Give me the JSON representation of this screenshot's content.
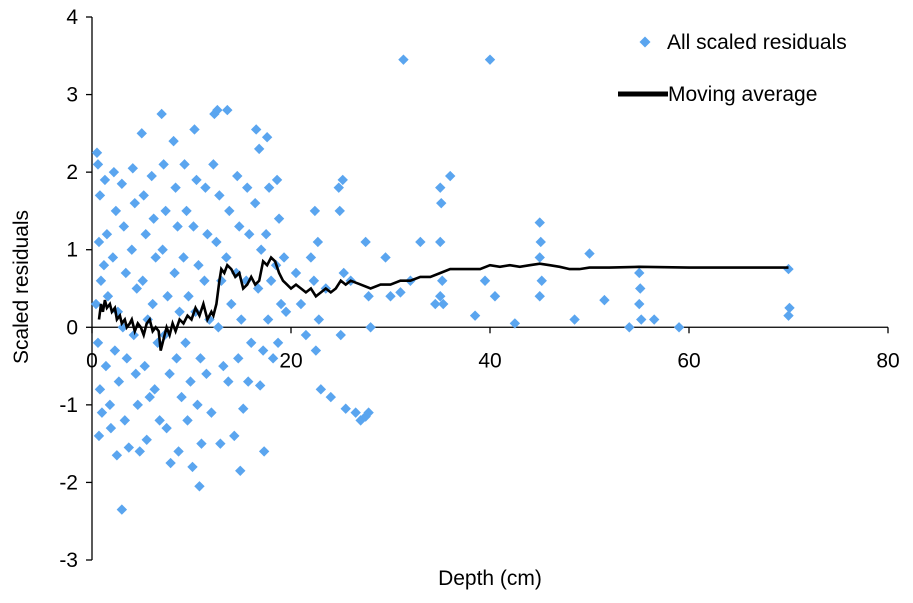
{
  "chart_data": {
    "type": "scatter",
    "xlabel": "Depth (cm)",
    "ylabel": "Scaled residuals",
    "xlim": [
      0,
      80
    ],
    "ylim": [
      -3,
      4
    ],
    "xticks": [
      "0",
      "20",
      "40",
      "60",
      "80"
    ],
    "yticks": [
      "-3",
      "-2",
      "-1",
      "0",
      "1",
      "2",
      "3",
      "4"
    ],
    "grid": false,
    "legend_position": "top-right",
    "colors": {
      "points": "#5aa5ef",
      "line": "#000000"
    },
    "series": [
      {
        "name": "All scaled residuals",
        "kind": "scatter",
        "marker": "diamond",
        "points": [
          [
            0.5,
            2.25
          ],
          [
            0.6,
            2.1
          ],
          [
            0.8,
            1.7
          ],
          [
            0.7,
            1.1
          ],
          [
            0.9,
            0.6
          ],
          [
            0.6,
            -0.2
          ],
          [
            0.8,
            -0.8
          ],
          [
            1.0,
            -1.1
          ],
          [
            0.7,
            -1.4
          ],
          [
            0.4,
            0.3
          ],
          [
            1.3,
            1.9
          ],
          [
            1.5,
            1.2
          ],
          [
            1.2,
            0.8
          ],
          [
            1.6,
            0.4
          ],
          [
            1.4,
            -0.5
          ],
          [
            1.8,
            -1.0
          ],
          [
            1.9,
            -1.3
          ],
          [
            2.2,
            2.0
          ],
          [
            2.4,
            1.5
          ],
          [
            2.1,
            0.9
          ],
          [
            2.6,
            0.2
          ],
          [
            2.3,
            -0.3
          ],
          [
            2.7,
            -0.7
          ],
          [
            2.5,
            -1.65
          ],
          [
            3.0,
            1.85
          ],
          [
            3.2,
            1.3
          ],
          [
            3.4,
            0.7
          ],
          [
            3.1,
            0.0
          ],
          [
            3.5,
            -0.4
          ],
          [
            3.3,
            -1.2
          ],
          [
            3.7,
            -1.55
          ],
          [
            3.0,
            -2.35
          ],
          [
            4.1,
            2.05
          ],
          [
            4.3,
            1.6
          ],
          [
            4.0,
            1.0
          ],
          [
            4.5,
            0.5
          ],
          [
            4.2,
            -0.1
          ],
          [
            4.4,
            -0.6
          ],
          [
            4.6,
            -1.0
          ],
          [
            4.8,
            -1.6
          ],
          [
            5.0,
            2.5
          ],
          [
            5.2,
            1.7
          ],
          [
            5.4,
            1.2
          ],
          [
            5.1,
            0.6
          ],
          [
            5.6,
            0.1
          ],
          [
            5.3,
            -0.5
          ],
          [
            5.8,
            -0.9
          ],
          [
            5.5,
            -1.45
          ],
          [
            6.0,
            1.95
          ],
          [
            6.2,
            1.4
          ],
          [
            6.4,
            0.9
          ],
          [
            6.1,
            0.3
          ],
          [
            6.6,
            -0.2
          ],
          [
            6.3,
            -0.8
          ],
          [
            6.8,
            -1.2
          ],
          [
            7.0,
            2.75
          ],
          [
            7.2,
            2.1
          ],
          [
            7.4,
            1.5
          ],
          [
            7.1,
            1.0
          ],
          [
            7.6,
            0.4
          ],
          [
            7.3,
            -0.1
          ],
          [
            7.8,
            -0.6
          ],
          [
            7.5,
            -1.3
          ],
          [
            7.9,
            -1.75
          ],
          [
            8.2,
            2.4
          ],
          [
            8.4,
            1.8
          ],
          [
            8.6,
            1.3
          ],
          [
            8.3,
            0.7
          ],
          [
            8.8,
            0.2
          ],
          [
            8.5,
            -0.4
          ],
          [
            9.0,
            -0.9
          ],
          [
            8.7,
            -1.6
          ],
          [
            9.3,
            2.1
          ],
          [
            9.5,
            1.5
          ],
          [
            9.2,
            0.9
          ],
          [
            9.7,
            0.4
          ],
          [
            9.4,
            -0.2
          ],
          [
            9.9,
            -0.7
          ],
          [
            9.6,
            -1.2
          ],
          [
            10.1,
            -1.8
          ],
          [
            10.3,
            2.55
          ],
          [
            10.5,
            1.9
          ],
          [
            10.2,
            1.3
          ],
          [
            10.7,
            0.8
          ],
          [
            10.4,
            0.2
          ],
          [
            10.9,
            -0.4
          ],
          [
            10.6,
            -1.0
          ],
          [
            11.0,
            -1.5
          ],
          [
            10.8,
            -2.05
          ],
          [
            11.4,
            1.8
          ],
          [
            11.6,
            1.2
          ],
          [
            11.3,
            0.6
          ],
          [
            11.8,
            0.1
          ],
          [
            11.5,
            -0.6
          ],
          [
            12.0,
            -1.1
          ],
          [
            12.3,
            2.75
          ],
          [
            12.6,
            2.8
          ],
          [
            12.2,
            2.1
          ],
          [
            12.8,
            1.7
          ],
          [
            12.5,
            1.1
          ],
          [
            13.0,
            0.6
          ],
          [
            12.7,
            0.0
          ],
          [
            13.2,
            -0.5
          ],
          [
            12.9,
            -1.5
          ],
          [
            13.6,
            2.8
          ],
          [
            13.8,
            1.5
          ],
          [
            13.5,
            0.9
          ],
          [
            14.0,
            0.3
          ],
          [
            13.7,
            -0.7
          ],
          [
            14.3,
            -1.4
          ],
          [
            14.6,
            1.95
          ],
          [
            14.8,
            1.3
          ],
          [
            14.5,
            0.7
          ],
          [
            15.0,
            0.1
          ],
          [
            14.7,
            -0.4
          ],
          [
            15.2,
            -1.05
          ],
          [
            14.9,
            -1.85
          ],
          [
            15.6,
            1.8
          ],
          [
            15.8,
            1.2
          ],
          [
            15.5,
            0.6
          ],
          [
            16.0,
            -0.2
          ],
          [
            15.7,
            -0.7
          ],
          [
            16.5,
            2.55
          ],
          [
            16.8,
            2.3
          ],
          [
            16.4,
            1.6
          ],
          [
            17.0,
            1.0
          ],
          [
            16.7,
            0.5
          ],
          [
            17.2,
            -0.3
          ],
          [
            16.9,
            -0.75
          ],
          [
            17.3,
            -1.6
          ],
          [
            17.6,
            2.45
          ],
          [
            17.8,
            1.8
          ],
          [
            17.5,
            1.2
          ],
          [
            18.0,
            0.6
          ],
          [
            17.7,
            0.1
          ],
          [
            18.2,
            -0.4
          ],
          [
            18.6,
            1.9
          ],
          [
            18.8,
            1.4
          ],
          [
            18.5,
            0.8
          ],
          [
            19.0,
            0.3
          ],
          [
            18.7,
            -0.2
          ],
          [
            19.3,
            0.9
          ],
          [
            19.5,
            0.2
          ],
          [
            20.5,
            0.7
          ],
          [
            21.0,
            0.3
          ],
          [
            21.5,
            -0.1
          ],
          [
            22.0,
            0.9
          ],
          [
            22.4,
            1.5
          ],
          [
            22.7,
            1.1
          ],
          [
            22.3,
            0.6
          ],
          [
            22.8,
            0.1
          ],
          [
            22.5,
            -0.3
          ],
          [
            23.0,
            -0.8
          ],
          [
            23.5,
            0.5
          ],
          [
            24.0,
            -0.9
          ],
          [
            24.8,
            1.8
          ],
          [
            25.2,
            1.9
          ],
          [
            24.9,
            1.5
          ],
          [
            25.3,
            0.7
          ],
          [
            25.0,
            -0.1
          ],
          [
            25.5,
            -1.05
          ],
          [
            26.0,
            0.6
          ],
          [
            26.5,
            -1.1
          ],
          [
            27.0,
            -1.2
          ],
          [
            27.5,
            -1.15
          ],
          [
            27.8,
            -1.1
          ],
          [
            27.5,
            1.1
          ],
          [
            27.8,
            0.4
          ],
          [
            28.0,
            0.0
          ],
          [
            29.5,
            0.9
          ],
          [
            30.0,
            0.4
          ],
          [
            31.0,
            0.45
          ],
          [
            31.3,
            3.45
          ],
          [
            32.0,
            0.6
          ],
          [
            33.0,
            1.1
          ],
          [
            34.5,
            0.3
          ],
          [
            35.0,
            1.8
          ],
          [
            35.1,
            1.6
          ],
          [
            35.0,
            1.1
          ],
          [
            35.2,
            0.6
          ],
          [
            35.0,
            0.4
          ],
          [
            35.3,
            0.3
          ],
          [
            36.0,
            1.95
          ],
          [
            38.5,
            0.15
          ],
          [
            39.5,
            0.6
          ],
          [
            40.0,
            3.45
          ],
          [
            40.5,
            0.4
          ],
          [
            42.5,
            0.05
          ],
          [
            45.0,
            1.35
          ],
          [
            45.1,
            1.1
          ],
          [
            45.0,
            0.9
          ],
          [
            45.2,
            0.6
          ],
          [
            45.0,
            0.4
          ],
          [
            48.5,
            0.1
          ],
          [
            50.0,
            0.95
          ],
          [
            51.5,
            0.35
          ],
          [
            54.0,
            0.0
          ],
          [
            55.0,
            0.7
          ],
          [
            55.1,
            0.5
          ],
          [
            55.0,
            0.3
          ],
          [
            55.2,
            0.1
          ],
          [
            56.5,
            0.1
          ],
          [
            59.0,
            0.0
          ],
          [
            70.0,
            0.75
          ],
          [
            70.1,
            0.25
          ],
          [
            70.0,
            0.15
          ]
        ]
      },
      {
        "name": "Moving average",
        "kind": "line",
        "points": [
          [
            0.7,
            0.1
          ],
          [
            0.9,
            0.3
          ],
          [
            1.1,
            0.2
          ],
          [
            1.3,
            0.35
          ],
          [
            1.5,
            0.25
          ],
          [
            1.8,
            0.3
          ],
          [
            2.0,
            0.2
          ],
          [
            2.3,
            0.25
          ],
          [
            2.5,
            0.1
          ],
          [
            2.8,
            0.15
          ],
          [
            3.0,
            0.05
          ],
          [
            3.3,
            0.1
          ],
          [
            3.5,
            0.0
          ],
          [
            3.8,
            0.05
          ],
          [
            4.0,
            0.1
          ],
          [
            4.3,
            -0.05
          ],
          [
            4.6,
            0.05
          ],
          [
            4.9,
            0.0
          ],
          [
            5.2,
            -0.1
          ],
          [
            5.5,
            0.05
          ],
          [
            5.8,
            0.1
          ],
          [
            6.1,
            -0.05
          ],
          [
            6.4,
            0.0
          ],
          [
            6.7,
            -0.05
          ],
          [
            6.9,
            -0.3
          ],
          [
            7.2,
            -0.15
          ],
          [
            7.5,
            0.0
          ],
          [
            7.8,
            -0.1
          ],
          [
            8.1,
            0.05
          ],
          [
            8.4,
            -0.05
          ],
          [
            8.8,
            0.1
          ],
          [
            9.2,
            0.05
          ],
          [
            9.6,
            0.15
          ],
          [
            10.0,
            0.1
          ],
          [
            10.4,
            0.25
          ],
          [
            10.8,
            0.15
          ],
          [
            11.2,
            0.3
          ],
          [
            11.6,
            0.1
          ],
          [
            12.0,
            0.2
          ],
          [
            12.2,
            0.15
          ],
          [
            12.5,
            0.3
          ],
          [
            12.8,
            0.6
          ],
          [
            13.0,
            0.75
          ],
          [
            13.3,
            0.7
          ],
          [
            13.6,
            0.8
          ],
          [
            14.0,
            0.75
          ],
          [
            14.4,
            0.65
          ],
          [
            14.8,
            0.7
          ],
          [
            15.2,
            0.5
          ],
          [
            15.6,
            0.55
          ],
          [
            16.0,
            0.65
          ],
          [
            16.4,
            0.55
          ],
          [
            16.8,
            0.6
          ],
          [
            17.2,
            0.85
          ],
          [
            17.6,
            0.8
          ],
          [
            18.0,
            0.9
          ],
          [
            18.4,
            0.85
          ],
          [
            18.8,
            0.7
          ],
          [
            19.2,
            0.6
          ],
          [
            19.6,
            0.55
          ],
          [
            20.0,
            0.5
          ],
          [
            20.5,
            0.55
          ],
          [
            21.0,
            0.5
          ],
          [
            21.5,
            0.45
          ],
          [
            22.0,
            0.5
          ],
          [
            22.5,
            0.4
          ],
          [
            23.0,
            0.45
          ],
          [
            23.5,
            0.5
          ],
          [
            24.0,
            0.45
          ],
          [
            24.5,
            0.5
          ],
          [
            25.0,
            0.6
          ],
          [
            25.5,
            0.55
          ],
          [
            26.0,
            0.6
          ],
          [
            27.0,
            0.55
          ],
          [
            28.0,
            0.5
          ],
          [
            29.0,
            0.55
          ],
          [
            30.0,
            0.55
          ],
          [
            31.0,
            0.6
          ],
          [
            32.0,
            0.6
          ],
          [
            33.0,
            0.65
          ],
          [
            34.0,
            0.65
          ],
          [
            35.0,
            0.7
          ],
          [
            36.0,
            0.75
          ],
          [
            37.0,
            0.75
          ],
          [
            38.0,
            0.75
          ],
          [
            39.0,
            0.75
          ],
          [
            40.0,
            0.8
          ],
          [
            41.0,
            0.78
          ],
          [
            42.0,
            0.8
          ],
          [
            43.0,
            0.78
          ],
          [
            44.0,
            0.8
          ],
          [
            45.0,
            0.82
          ],
          [
            46.0,
            0.8
          ],
          [
            47.0,
            0.78
          ],
          [
            48.0,
            0.75
          ],
          [
            49.0,
            0.75
          ],
          [
            50.0,
            0.77
          ],
          [
            52.0,
            0.77
          ],
          [
            55.0,
            0.78
          ],
          [
            60.0,
            0.77
          ],
          [
            65.0,
            0.77
          ],
          [
            70.0,
            0.77
          ]
        ]
      }
    ]
  }
}
